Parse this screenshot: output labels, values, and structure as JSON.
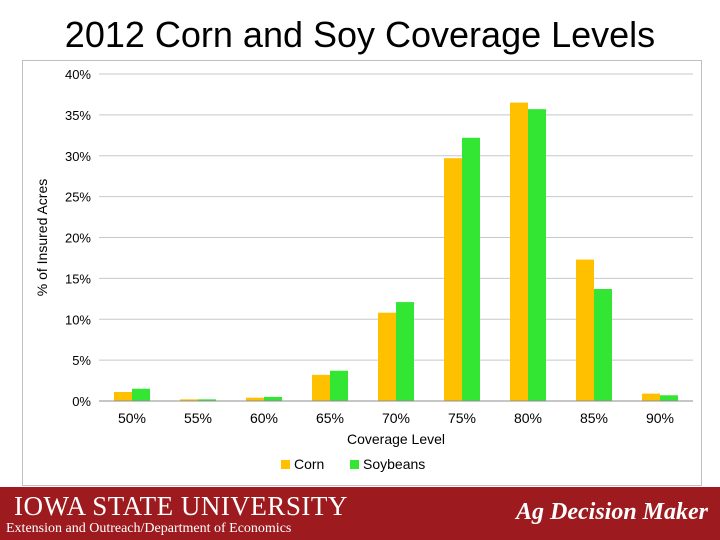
{
  "slide": {
    "title": "2012 Corn and Soy Coverage Levels"
  },
  "footer": {
    "logo_text": "IOWA STATE UNIVERSITY",
    "department": "Extension and Outreach/Department of Economics",
    "brand": "Ag Decision Maker",
    "background_color": "#9d1b1e"
  },
  "chart_data": {
    "type": "bar",
    "categories": [
      "50%",
      "55%",
      "60%",
      "65%",
      "70%",
      "75%",
      "80%",
      "85%",
      "90%"
    ],
    "series": [
      {
        "name": "Corn",
        "color": "#ffc000",
        "values": [
          1.1,
          0.2,
          0.4,
          3.2,
          10.8,
          29.7,
          36.5,
          17.3,
          0.9
        ]
      },
      {
        "name": "Soybeans",
        "color": "#33e633",
        "values": [
          1.5,
          0.2,
          0.5,
          3.7,
          12.1,
          32.2,
          35.7,
          13.7,
          0.7
        ]
      }
    ],
    "xlabel": "Coverage Level",
    "ylabel": "% of Insured Acres",
    "ylim": [
      0,
      40
    ],
    "yticks": [
      "0%",
      "5%",
      "10%",
      "15%",
      "20%",
      "25%",
      "30%",
      "35%",
      "40%"
    ],
    "ytick_values": [
      0,
      5,
      10,
      15,
      20,
      25,
      30,
      35,
      40
    ],
    "grid": true,
    "legend_position": "bottom"
  }
}
